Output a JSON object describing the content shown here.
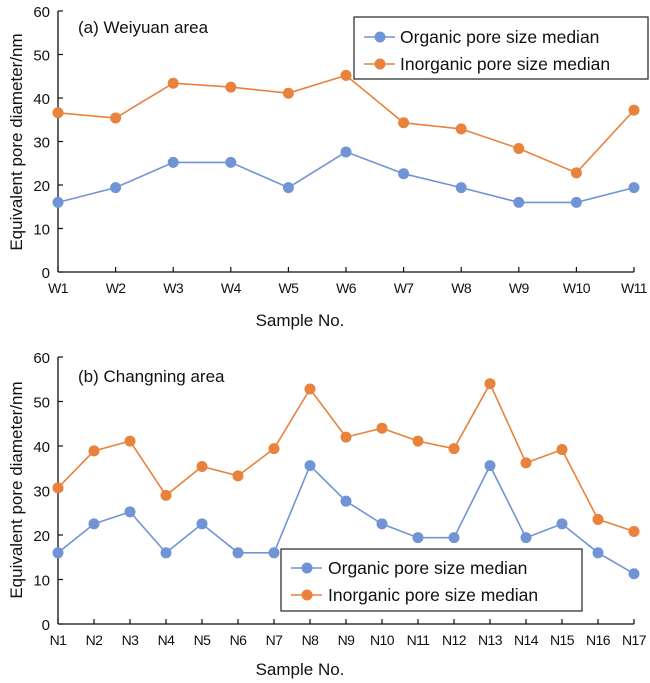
{
  "colors": {
    "organic": "#7094D6",
    "inorganic": "#E9823D",
    "axis": "#111111"
  },
  "chart_data": [
    {
      "type": "line",
      "title": "(a) Weiyuan area",
      "xlabel": "Sample No.",
      "ylabel": "Equivalent pore diameter/nm",
      "ylim": [
        0,
        60
      ],
      "yticks": [
        "0",
        "10",
        "20",
        "30",
        "40",
        "50",
        "60"
      ],
      "grid": false,
      "legend_position": "top-right",
      "categories": [
        "W1",
        "W2",
        "W3",
        "W4",
        "W5",
        "W6",
        "W7",
        "W8",
        "W9",
        "W10",
        "W11"
      ],
      "series": [
        {
          "name": "Organic pore size median",
          "values": [
            16.0,
            19.4,
            25.2,
            25.2,
            19.4,
            27.6,
            22.6,
            19.4,
            16.0,
            16.0,
            19.4
          ]
        },
        {
          "name": "Inorganic pore size median",
          "values": [
            36.6,
            35.4,
            43.4,
            42.5,
            41.1,
            45.2,
            34.3,
            32.9,
            28.4,
            22.8,
            37.2
          ]
        }
      ]
    },
    {
      "type": "line",
      "title": "(b) Changning area",
      "xlabel": "Sample No.",
      "ylabel": "Equivalent pore diameter/nm",
      "ylim": [
        0,
        60
      ],
      "yticks": [
        "0",
        "10",
        "20",
        "30",
        "40",
        "50",
        "60"
      ],
      "grid": false,
      "legend_position": "bottom-center-right",
      "categories": [
        "N1",
        "N2",
        "N3",
        "N4",
        "N5",
        "N6",
        "N7",
        "N8",
        "N9",
        "N10",
        "N11",
        "N12",
        "N13",
        "N14",
        "N15",
        "N16",
        "N17"
      ],
      "series": [
        {
          "name": "Organic pore size median",
          "values": [
            16.0,
            22.5,
            25.2,
            16.0,
            22.5,
            16.0,
            16.0,
            35.6,
            27.6,
            22.5,
            19.4,
            19.4,
            35.6,
            19.4,
            22.5,
            16.0,
            11.3
          ]
        },
        {
          "name": "Inorganic pore size median",
          "values": [
            30.6,
            38.9,
            41.1,
            28.9,
            35.4,
            33.3,
            39.4,
            52.8,
            42.0,
            44.0,
            41.1,
            39.4,
            54.0,
            36.2,
            39.2,
            23.5,
            20.8
          ]
        }
      ]
    }
  ]
}
